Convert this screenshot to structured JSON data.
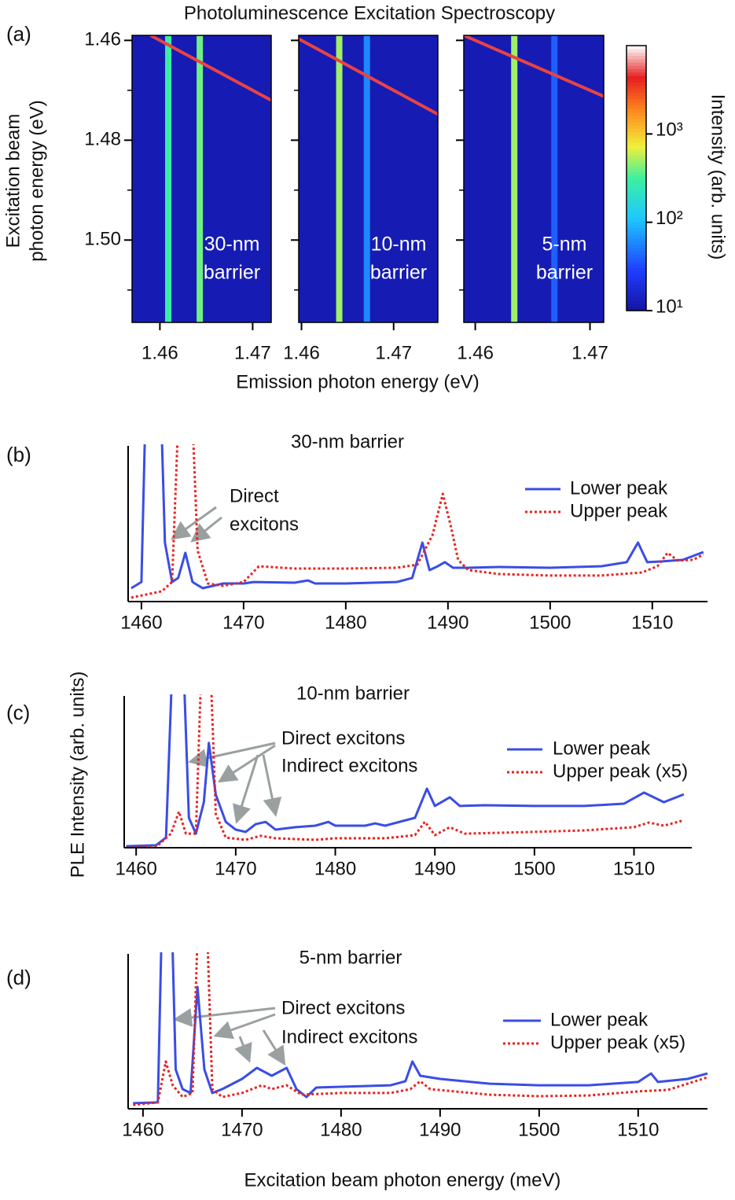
{
  "chart_data": [
    {
      "type": "heatmap",
      "panel": "(a)",
      "title": "Photoluminescence Excitation Spectroscopy",
      "ylabel": [
        "Excitation beam",
        "photon energy (eV)"
      ],
      "xlabel": "Emission photon energy (eV)",
      "ylim": [
        1.459,
        1.5165
      ],
      "yticks": [
        1.46,
        1.48,
        {
          "value": 1.5,
          "label": "1.50"
        }
      ],
      "yminorticks": [
        1.47,
        1.49,
        1.51
      ],
      "laser_intensity": 5000,
      "panels": [
        {
          "label": [
            "30-nm",
            "barrier"
          ],
          "xlim": [
            1.457,
            1.472
          ],
          "xticks": [
            1.46,
            1.47
          ],
          "streaks": [
            {
              "x": 1.4609,
              "intensity": 300
            },
            {
              "x": 1.4643,
              "intensity": 400
            }
          ]
        },
        {
          "label": [
            "10-nm",
            "barrier"
          ],
          "xlim": [
            1.4597,
            1.4748
          ],
          "xticks": [
            1.46,
            1.47
          ],
          "streaks": [
            {
              "x": 1.4641,
              "intensity": 500
            },
            {
              "x": 1.4671,
              "intensity": 60
            }
          ]
        },
        {
          "label": [
            "5-nm",
            "barrier"
          ],
          "xlim": [
            1.459,
            1.4712
          ],
          "xticks": [
            1.46,
            1.47
          ],
          "streaks": [
            {
              "x": 1.4634,
              "intensity": 500
            },
            {
              "x": 1.4669,
              "intensity": 40
            }
          ]
        }
      ],
      "colorbar": {
        "label": "Intensity (arb. units)",
        "log": true,
        "clim": [
          10,
          10000
        ],
        "ticks": [
          {
            "value": 10,
            "label": "10¹"
          },
          {
            "value": 100,
            "label": "10²"
          },
          {
            "value": 1000,
            "label": "10³"
          }
        ]
      }
    },
    {
      "type": "line",
      "panel": "(b)",
      "title": "30-nm barrier",
      "xlim": [
        1458.7,
        1515.4
      ],
      "xticks": [
        1460,
        1470,
        1480,
        1490,
        1500,
        1510
      ],
      "ylim": [
        0,
        10
      ],
      "annotations": [
        "Direct",
        "excitons"
      ],
      "series": [
        {
          "name": "Lower peak",
          "color": "#3a4de6",
          "style": "solid",
          "x": [
            1459,
            1460,
            1460.5,
            1461.8,
            1462.3,
            1463,
            1463.6,
            1464.3,
            1465,
            1466,
            1468,
            1470,
            1471,
            1475,
            1476.3,
            1477,
            1480,
            1485,
            1486.5,
            1487.5,
            1488.2,
            1489,
            1489.7,
            1490.5,
            1492,
            1495,
            1500,
            1505,
            1507.5,
            1508.6,
            1509.5,
            1511,
            1513,
            1515
          ],
          "values": [
            0.86,
            1.26,
            15,
            15,
            3.79,
            1.26,
            1.52,
            3.13,
            1.26,
            0.86,
            1.16,
            1.16,
            1.26,
            1.21,
            1.36,
            1.16,
            1.16,
            1.26,
            1.52,
            3.79,
            2.02,
            2.27,
            2.53,
            2.17,
            2.17,
            2.22,
            2.17,
            2.27,
            2.53,
            3.79,
            2.53,
            2.58,
            2.68,
            3.18
          ]
        },
        {
          "name": "Upper peak",
          "color": "#e8231f",
          "style": "dotted",
          "x": [
            1459,
            1462,
            1463,
            1463.8,
            1464.8,
            1465.5,
            1466.5,
            1468,
            1470,
            1471.5,
            1475,
            1480,
            1485,
            1487,
            1488.5,
            1489.5,
            1490.3,
            1491,
            1492,
            1495,
            1500,
            1505,
            1509,
            1510.5,
            1511.5,
            1512.5,
            1514,
            1515
          ],
          "values": [
            0.25,
            0.66,
            1.26,
            15,
            15,
            3.28,
            1.16,
            1.01,
            1.26,
            2.27,
            2.12,
            2.12,
            2.17,
            2.37,
            4.29,
            6.92,
            4.8,
            2.68,
            2.02,
            1.77,
            1.67,
            1.67,
            1.87,
            2.27,
            3.13,
            2.63,
            2.68,
            3.03
          ]
        }
      ]
    },
    {
      "type": "line",
      "panel": "(c)",
      "title": "10-nm barrier",
      "xlim": [
        1458.8,
        1515.8
      ],
      "xticks": [
        1460,
        1470,
        1480,
        1490,
        1500,
        1510
      ],
      "ylim": [
        0,
        10
      ],
      "annotations": [
        "Direct excitons",
        "Indirect excitons"
      ],
      "series": [
        {
          "name": "Lower peak",
          "color": "#3a4de6",
          "style": "solid",
          "x": [
            1459,
            1462,
            1463,
            1463.8,
            1464.6,
            1465.3,
            1466,
            1466.8,
            1467.3,
            1468,
            1469,
            1470,
            1471,
            1472,
            1473,
            1474,
            1476,
            1478,
            1479.3,
            1480,
            1483,
            1484,
            1485,
            1488,
            1489.2,
            1490,
            1491.5,
            1492.5,
            1495,
            1500,
            1505,
            1509,
            1511,
            1513,
            1515
          ],
          "values": [
            0.1,
            0.16,
            0.67,
            15,
            15,
            1.97,
            0.93,
            3.0,
            6.9,
            3.5,
            1.7,
            1.19,
            1.04,
            1.55,
            1.7,
            1.19,
            1.35,
            1.45,
            1.7,
            1.45,
            1.45,
            1.6,
            1.45,
            1.97,
            3.89,
            2.75,
            3.32,
            2.75,
            2.8,
            2.75,
            2.75,
            2.9,
            3.63,
            3.0,
            3.52
          ]
        },
        {
          "name": "Upper peak (x5)",
          "color": "#e8231f",
          "style": "dotted",
          "x": [
            1459,
            1462,
            1463.5,
            1464.3,
            1465,
            1466,
            1466.7,
            1467.3,
            1468,
            1469,
            1471,
            1472.5,
            1474,
            1478,
            1480,
            1485,
            1488,
            1489,
            1490,
            1491.5,
            1493,
            1500,
            1505,
            1510,
            1511.5,
            1513,
            1515
          ],
          "values": [
            0,
            0.05,
            0.93,
            2.38,
            0.93,
            0.93,
            15,
            15,
            2.23,
            0.67,
            0.52,
            0.78,
            0.62,
            0.52,
            0.62,
            0.62,
            0.83,
            1.71,
            0.83,
            1.35,
            0.93,
            1.04,
            1.14,
            1.35,
            1.66,
            1.45,
            1.81
          ]
        }
      ]
    },
    {
      "type": "line",
      "panel": "(d)",
      "title": "5-nm barrier",
      "xlim": [
        1458.5,
        1517
      ],
      "xticks": [
        1460,
        1470,
        1480,
        1490,
        1500,
        1510
      ],
      "ylim": [
        0,
        10
      ],
      "annotations": [
        "Direct excitons",
        "Indirect excitons"
      ],
      "series": [
        {
          "name": "Lower peak",
          "color": "#3a4de6",
          "style": "solid",
          "x": [
            1459,
            1461.5,
            1462,
            1462.8,
            1463.3,
            1464,
            1464.8,
            1465.5,
            1466.2,
            1467,
            1468,
            1470,
            1471.5,
            1473,
            1474.5,
            1475.5,
            1476.5,
            1477.5,
            1480,
            1485,
            1486.5,
            1487.2,
            1488,
            1490,
            1495,
            1500,
            1505,
            1510,
            1511.3,
            1512,
            1515,
            1517
          ],
          "values": [
            0.36,
            0.41,
            15,
            15,
            2.54,
            1.27,
            1.02,
            7.87,
            2.54,
            1.02,
            1.27,
            1.93,
            2.64,
            2.13,
            2.64,
            1.27,
            0.76,
            1.37,
            1.42,
            1.52,
            1.78,
            3.05,
            2.13,
            1.93,
            1.62,
            1.52,
            1.52,
            1.73,
            2.28,
            1.73,
            1.93,
            2.28
          ]
        },
        {
          "name": "Upper peak (x5)",
          "color": "#e8231f",
          "style": "dotted",
          "x": [
            1459,
            1461.5,
            1462.3,
            1463,
            1464,
            1465,
            1465.7,
            1466.3,
            1467,
            1468,
            1470,
            1472,
            1473,
            1474.5,
            1476,
            1480,
            1485,
            1487,
            1488,
            1489,
            1495,
            1500,
            1505,
            1510,
            1513,
            1517
          ],
          "values": [
            0.25,
            0.41,
            3.05,
            1.52,
            0.76,
            1.02,
            15,
            15,
            1.27,
            0.76,
            1.02,
            1.52,
            1.27,
            1.52,
            0.91,
            1.02,
            1.02,
            1.27,
            1.78,
            1.27,
            0.91,
            0.81,
            0.86,
            1.12,
            1.22,
            2.03
          ]
        }
      ]
    }
  ],
  "shared": {
    "ylabel": "PLE Intensity (arb. units)",
    "xlabel": "Excitation beam photon energy (meV)"
  }
}
